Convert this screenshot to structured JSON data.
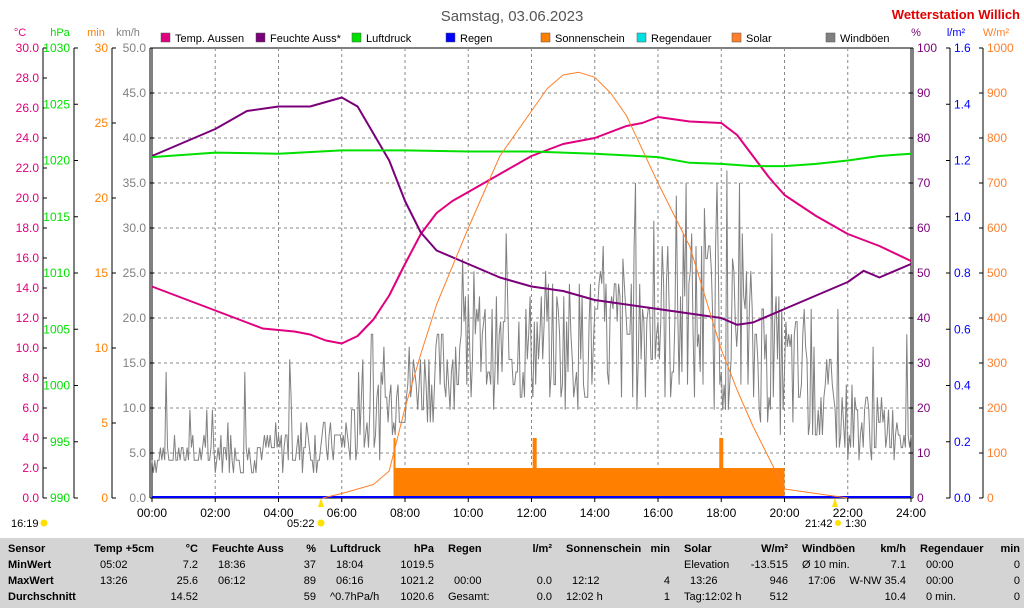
{
  "title": "Samstag, 03.06.2023",
  "station": "Wetterstation Willich",
  "colors": {
    "temp": "#e0007f",
    "humidity": "#7a007a",
    "pressure": "#00e000",
    "rain": "#0000ff",
    "sunshine": "#ff7f00",
    "rain_duration": "#00e0e0",
    "solar": "#ff7f2a",
    "gust": "#808080",
    "station": "#e00000"
  },
  "axis_headers": {
    "temp": "°C",
    "pressure": "hPa",
    "sunshine": "min",
    "wind": "km/h",
    "humidity": "%",
    "rain": "l/m²",
    "solar": "W/m²"
  },
  "sun_markers": {
    "sunrise_left": "16:19",
    "sunrise": "05:22",
    "sunset": "21:42",
    "moonrise": "1:30"
  },
  "chart_data": {
    "type": "line",
    "title": "Samstag, 03.06.2023",
    "x_range_h": [
      0,
      24
    ],
    "x_ticks": [
      "00:00",
      "02:00",
      "04:00",
      "06:00",
      "08:00",
      "10:00",
      "12:00",
      "14:00",
      "16:00",
      "18:00",
      "20:00",
      "22:00",
      "24:00"
    ],
    "left_axes": [
      {
        "id": "temp",
        "unit": "°C",
        "range": [
          0,
          30
        ],
        "ticks": [
          "0.0",
          "2.0",
          "4.0",
          "6.0",
          "8.0",
          "10.0",
          "12.0",
          "14.0",
          "16.0",
          "18.0",
          "20.0",
          "22.0",
          "24.0",
          "26.0",
          "28.0",
          "30.0"
        ]
      },
      {
        "id": "pressure",
        "unit": "hPa",
        "range": [
          990,
          1030
        ],
        "ticks": [
          "990",
          "995",
          "1000",
          "1005",
          "1010",
          "1015",
          "1020",
          "1025",
          "1030"
        ]
      },
      {
        "id": "sunshine",
        "unit": "min",
        "range": [
          0,
          30
        ],
        "ticks": [
          "0",
          "5",
          "10",
          "15",
          "20",
          "25",
          "30"
        ]
      },
      {
        "id": "wind",
        "unit": "km/h",
        "range": [
          0,
          50
        ],
        "ticks": [
          "0.0",
          "5.0",
          "10.0",
          "15.0",
          "20.0",
          "25.0",
          "30.0",
          "35.0",
          "40.0",
          "45.0",
          "50.0"
        ]
      }
    ],
    "right_axes": [
      {
        "id": "humidity",
        "unit": "%",
        "range": [
          0,
          100
        ],
        "ticks": [
          "0",
          "10",
          "20",
          "30",
          "40",
          "50",
          "60",
          "70",
          "80",
          "90",
          "100"
        ]
      },
      {
        "id": "rain",
        "unit": "l/m²",
        "range": [
          0,
          1.6
        ],
        "ticks": [
          "0.0",
          "0.2",
          "0.4",
          "0.6",
          "0.8",
          "1.0",
          "1.2",
          "1.4",
          "1.6"
        ]
      },
      {
        "id": "solar",
        "unit": "W/m²",
        "range": [
          0,
          1000
        ],
        "ticks": [
          "0",
          "100",
          "200",
          "300",
          "400",
          "500",
          "600",
          "700",
          "800",
          "900",
          "1000"
        ]
      }
    ],
    "legend": [
      "Temp. Aussen",
      "Feuchte Auss*",
      "Luftdruck",
      "Regen",
      "Sonnenschein",
      "Regendauer",
      "Solar",
      "Windböen"
    ],
    "series": [
      {
        "name": "Temp. Aussen",
        "axis": "temp",
        "x": [
          0,
          1,
          2,
          3,
          3.5,
          4,
          4.5,
          5,
          5.5,
          6,
          6.5,
          7,
          7.5,
          8,
          8.5,
          9,
          9.5,
          10,
          11,
          12,
          13,
          14,
          15,
          15.5,
          16,
          17,
          18,
          18.5,
          19,
          19.5,
          20,
          21,
          22,
          23,
          24
        ],
        "y": [
          14.1,
          13.3,
          12.5,
          11.7,
          11.3,
          11.2,
          11.1,
          10.9,
          10.5,
          10.3,
          10.8,
          11.9,
          13.5,
          15.6,
          17.6,
          19.0,
          19.8,
          20.4,
          21.6,
          22.8,
          23.6,
          24.0,
          24.8,
          25.0,
          25.4,
          25.1,
          25.0,
          24.2,
          22.8,
          21.4,
          20.2,
          18.8,
          17.6,
          16.8,
          15.8
        ]
      },
      {
        "name": "Feuchte Auss*",
        "axis": "humidity",
        "x": [
          0,
          1,
          2,
          3,
          4,
          5,
          5.5,
          6,
          6.5,
          7,
          7.5,
          8,
          8.5,
          9,
          10,
          11,
          12,
          13,
          14,
          15,
          16,
          17,
          18,
          18.5,
          19,
          20,
          21,
          22,
          22.5,
          23,
          24
        ],
        "y": [
          76,
          79,
          82,
          86,
          87,
          87,
          88,
          89,
          87,
          81,
          75,
          66,
          59,
          55,
          52,
          49,
          47,
          46,
          44,
          43,
          42,
          41,
          40,
          38.5,
          39,
          42,
          45,
          48,
          50.5,
          49,
          52
        ]
      },
      {
        "name": "Luftdruck",
        "axis": "pressure",
        "x": [
          0,
          2,
          4,
          6,
          8,
          10,
          12,
          14,
          16,
          17,
          18,
          19,
          20,
          21,
          22,
          23,
          24
        ],
        "y": [
          1020.3,
          1020.7,
          1020.6,
          1020.9,
          1020.9,
          1020.8,
          1020.8,
          1020.6,
          1020.3,
          1019.8,
          1019.7,
          1019.5,
          1019.5,
          1019.7,
          1020.0,
          1020.4,
          1020.6
        ]
      },
      {
        "name": "Solar",
        "axis": "solar",
        "x": [
          5.4,
          6,
          7,
          7.5,
          8,
          8.5,
          9,
          10,
          11,
          12,
          12.5,
          13,
          13.5,
          14,
          14.5,
          15,
          16,
          17,
          18,
          18.5,
          19,
          19.5,
          20,
          20.5,
          21,
          21.5,
          22
        ],
        "y": [
          0,
          10,
          30,
          60,
          200,
          320,
          430,
          600,
          760,
          860,
          910,
          940,
          946,
          935,
          900,
          850,
          700,
          560,
          330,
          240,
          160,
          90,
          20,
          15,
          10,
          5,
          0
        ]
      },
      {
        "name": "Sonnenschein",
        "axis": "sunshine",
        "x": [
          7.7,
          20.0
        ],
        "y": [
          2,
          2
        ],
        "peaks_x": [
          12.1,
          18.0
        ],
        "peaks_y": [
          4,
          4
        ],
        "start_peak": 4
      }
    ],
    "gust_axis": "wind",
    "gust_profile": [
      {
        "x": 0,
        "lo": 3,
        "hi": 6
      },
      {
        "x": 2,
        "lo": 3,
        "hi": 7
      },
      {
        "x": 4,
        "lo": 3,
        "hi": 8
      },
      {
        "x": 6,
        "lo": 3,
        "hi": 9
      },
      {
        "x": 7,
        "lo": 4,
        "hi": 14
      },
      {
        "x": 8,
        "lo": 8,
        "hi": 17
      },
      {
        "x": 10,
        "lo": 10,
        "hi": 21
      },
      {
        "x": 12,
        "lo": 10,
        "hi": 24
      },
      {
        "x": 14,
        "lo": 10,
        "hi": 25
      },
      {
        "x": 16,
        "lo": 10,
        "hi": 30
      },
      {
        "x": 18,
        "lo": 9,
        "hi": 30
      },
      {
        "x": 20,
        "lo": 7,
        "hi": 22
      },
      {
        "x": 22,
        "lo": 4,
        "hi": 13
      },
      {
        "x": 24,
        "lo": 5,
        "hi": 10
      }
    ]
  },
  "summary": {
    "row_labels": {
      "title": "Sensor",
      "min": "MinWert",
      "max": "MaxWert",
      "avg": "Durchschnitt"
    },
    "temp": {
      "header": "Temp +5cm",
      "unit": "°C",
      "min_time": "05:02",
      "min_val": "7.2",
      "max_time": "13:26",
      "max_val": "25.6",
      "avg": "14.52"
    },
    "humidity": {
      "header": "Feuchte Auss",
      "unit": "%",
      "min_time": "18:36",
      "min_val": "37",
      "max_time": "06:12",
      "max_val": "89",
      "avg": "59"
    },
    "pressure": {
      "header": "Luftdruck",
      "unit": "hPa",
      "min_time": "18:04",
      "min_val": "1019.5",
      "max_time": "06:16",
      "max_val": "1021.2",
      "avg_label": "^0.7hPa/h",
      "avg": "1020.6"
    },
    "rain": {
      "header": "Regen",
      "unit": "l/m²",
      "max_time": "00:00",
      "max_val": "0.0",
      "avg_label": "Gesamt:",
      "avg": "0.0"
    },
    "sunshine": {
      "header": "Sonnenschein",
      "unit": "min",
      "max_time": "12:12",
      "max_val": "4",
      "avg_label": "12:02 h",
      "avg": "1"
    },
    "solar": {
      "header": "Solar",
      "unit": "W/m²",
      "min_label": "Elevation",
      "min_val": "-13.515",
      "max_time": "13:26",
      "max_val": "946",
      "avg_label": "Tag:12:02 h",
      "avg": "512"
    },
    "wind": {
      "header": "Windböen",
      "unit": "km/h",
      "min_label": "Ø 10 min.",
      "min_val": "7.1",
      "max_time": "17:06",
      "max_val": "W-NW 35.4",
      "avg": "10.4"
    },
    "rain_duration": {
      "header": "Regendauer",
      "unit": "min",
      "min_time": "00:00",
      "min_val": "0",
      "max_time": "00:00",
      "max_val": "0",
      "avg_label": "0 min.",
      "avg": "0"
    }
  }
}
